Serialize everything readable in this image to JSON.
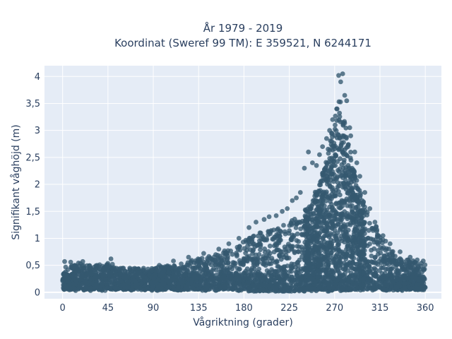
{
  "chart_data": {
    "type": "scatter",
    "title_line1": "År 1979 - 2019",
    "title_line2": "Koordinat (Sweref 99 TM): E 359521, N 6244171",
    "xlabel": "Vågriktning (grader)",
    "ylabel": "Signifikant våghöjd (m)",
    "xlim": [
      -18,
      376
    ],
    "ylim": [
      -0.12,
      4.2
    ],
    "x_ticks": [
      0,
      45,
      90,
      135,
      180,
      225,
      270,
      315,
      360
    ],
    "x_tick_labels": [
      "0",
      "45",
      "90",
      "135",
      "180",
      "225",
      "270",
      "315",
      "360"
    ],
    "y_ticks": [
      0,
      0.5,
      1,
      1.5,
      2,
      2.5,
      3,
      3.5,
      4
    ],
    "y_tick_labels": [
      "0",
      "0,5",
      "1",
      "1,5",
      "2",
      "2,5",
      "3",
      "3,5",
      "4"
    ],
    "grid": true,
    "marker_color": "#34586f",
    "background_color": "#e5ecf6",
    "series": [
      {
        "envelope_x": [
          0,
          15,
          30,
          45,
          60,
          75,
          90,
          105,
          120,
          135,
          150,
          165,
          180,
          195,
          210,
          225,
          240,
          255,
          262,
          270,
          275,
          280,
          285,
          290,
          300,
          315,
          330,
          345,
          360
        ],
        "envelope_y_max": [
          0.55,
          0.55,
          0.5,
          0.55,
          0.45,
          0.45,
          0.45,
          0.5,
          0.55,
          0.65,
          0.7,
          0.8,
          0.95,
          1.1,
          1.2,
          1.3,
          1.5,
          2.0,
          2.5,
          3.3,
          3.6,
          3.2,
          2.7,
          2.2,
          1.6,
          1.1,
          0.7,
          0.6,
          0.55
        ],
        "envelope_y_min": [
          0.05,
          0.05,
          0.05,
          0.05,
          0.05,
          0.05,
          0.05,
          0.05,
          0.05,
          0.05,
          0.05,
          0.05,
          0.02,
          0.02,
          0.02,
          0.02,
          0.02,
          0.02,
          0.02,
          0.02,
          0.02,
          0.02,
          0.02,
          0.05,
          0.05,
          0.05,
          0.05,
          0.05,
          0.05
        ],
        "outliers": [
          [
            274,
            4.02
          ],
          [
            278,
            4.05
          ],
          [
            276,
            3.9
          ],
          [
            280,
            3.65
          ],
          [
            272,
            3.4
          ],
          [
            282,
            3.55
          ],
          [
            268,
            3.2
          ],
          [
            265,
            3.0
          ],
          [
            285,
            3.05
          ],
          [
            258,
            2.7
          ],
          [
            255,
            2.55
          ],
          [
            252,
            2.35
          ],
          [
            248,
            2.4
          ],
          [
            244,
            2.6
          ],
          [
            240,
            2.3
          ],
          [
            236,
            1.85
          ],
          [
            232,
            1.75
          ],
          [
            228,
            1.7
          ],
          [
            223,
            1.55
          ],
          [
            218,
            1.5
          ],
          [
            212,
            1.42
          ],
          [
            205,
            1.4
          ],
          [
            200,
            1.35
          ],
          [
            192,
            1.3
          ],
          [
            185,
            1.2
          ],
          [
            175,
            1.0
          ],
          [
            165,
            0.9
          ],
          [
            155,
            0.8
          ],
          [
            140,
            0.72
          ],
          [
            125,
            0.65
          ],
          [
            110,
            0.58
          ],
          [
            96,
            0.5
          ],
          [
            48,
            0.62
          ],
          [
            20,
            0.57
          ],
          [
            8,
            0.56
          ],
          [
            290,
            2.6
          ],
          [
            295,
            2.15
          ],
          [
            300,
            1.85
          ],
          [
            305,
            1.55
          ],
          [
            310,
            1.3
          ],
          [
            318,
            1.05
          ],
          [
            325,
            0.9
          ],
          [
            335,
            0.75
          ],
          [
            345,
            0.65
          ],
          [
            352,
            0.6
          ],
          [
            358,
            0.58
          ],
          [
            2,
            0.57
          ],
          [
            262,
            2.85
          ],
          [
            286,
            2.9
          ],
          [
            292,
            2.4
          ]
        ]
      }
    ]
  }
}
